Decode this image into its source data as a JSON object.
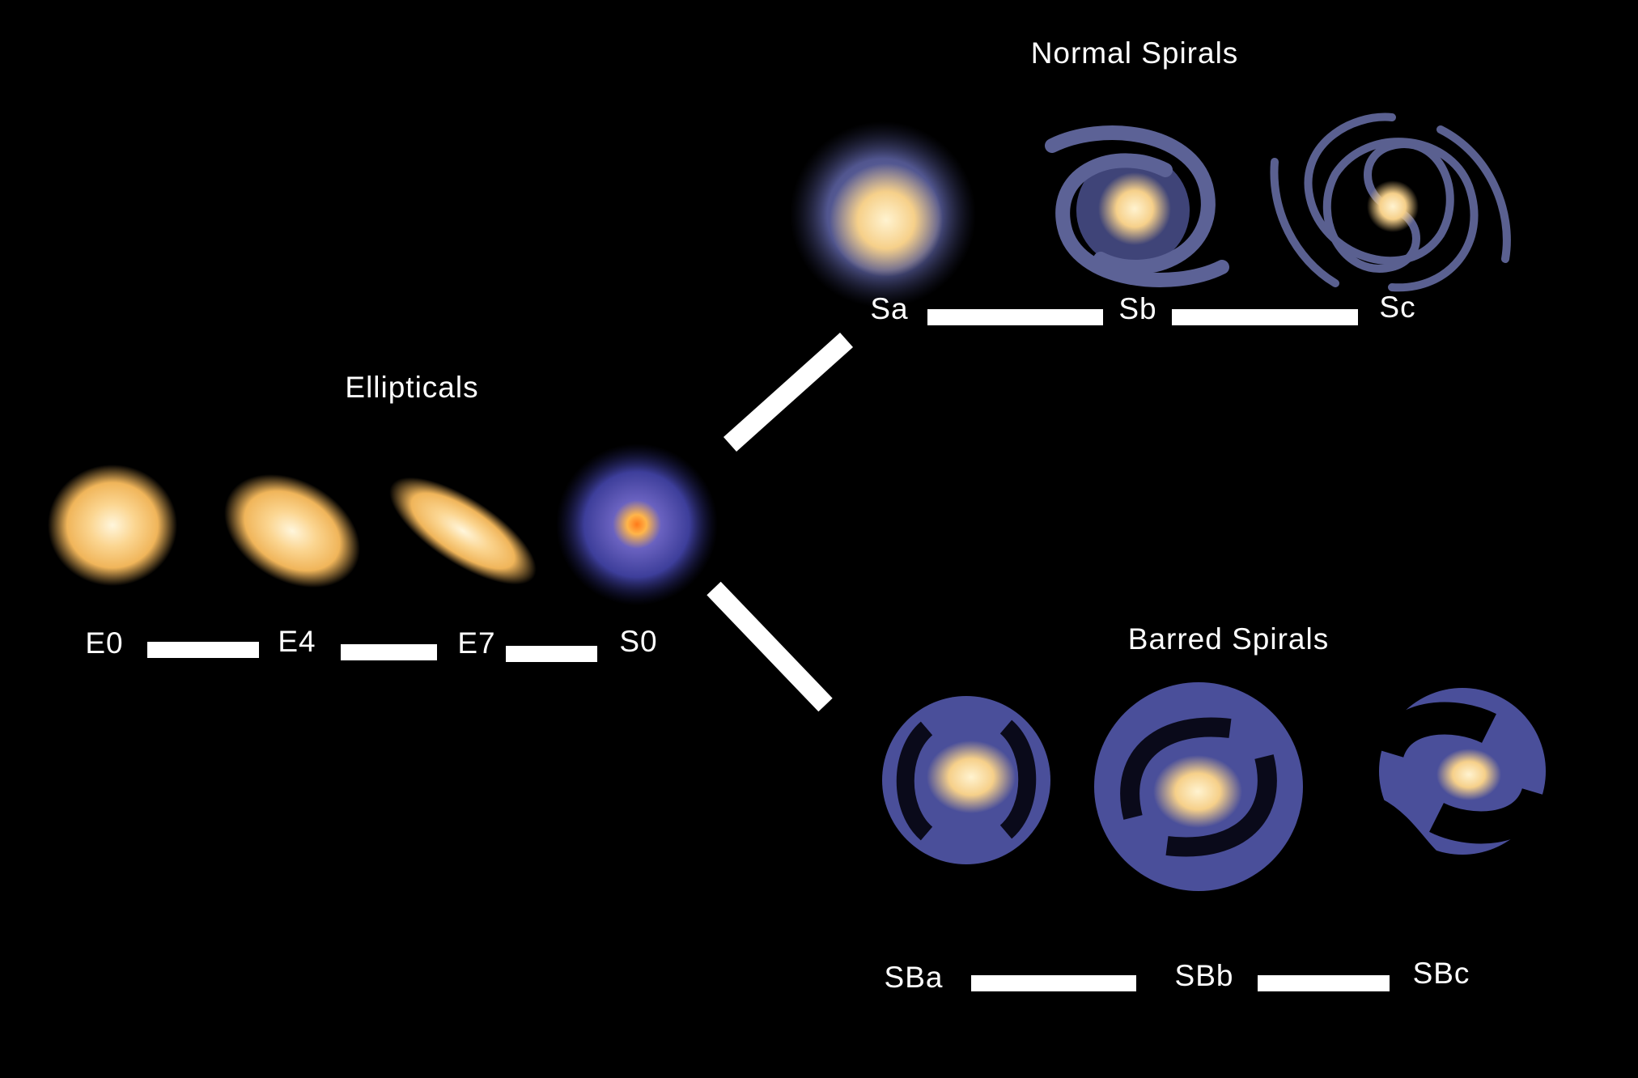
{
  "groups": {
    "ellipticals": "Ellipticals",
    "normal_spirals": "Normal Spirals",
    "barred_spirals": "Barred Spirals"
  },
  "nodes": [
    {
      "label": "E0"
    },
    {
      "label": "E4"
    },
    {
      "label": "E7"
    },
    {
      "label": "S0"
    },
    {
      "label": "Sa"
    },
    {
      "label": "Sb"
    },
    {
      "label": "Sc"
    },
    {
      "label": "SBa"
    },
    {
      "label": "SBb"
    },
    {
      "label": "SBc"
    }
  ]
}
